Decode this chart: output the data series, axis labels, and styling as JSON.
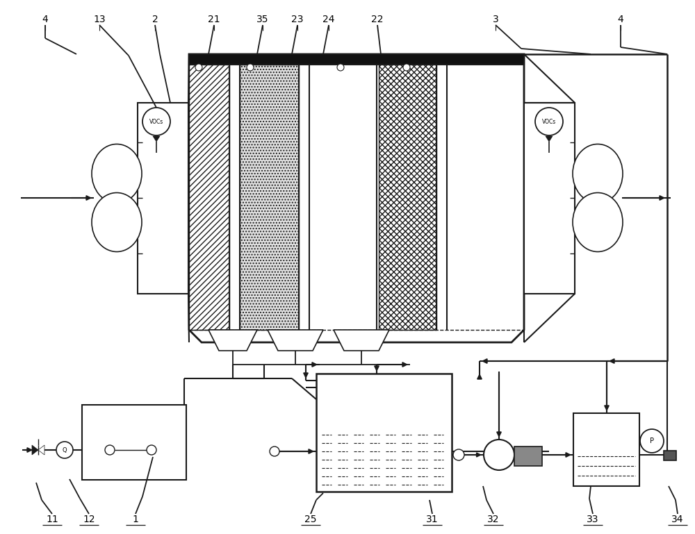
{
  "bg_color": "#ffffff",
  "line_color": "#1a1a1a",
  "fig_width": 10.0,
  "fig_height": 7.69,
  "dpi": 100,
  "top_labels": [
    [
      65,
      28,
      "4"
    ],
    [
      143,
      28,
      "13"
    ],
    [
      223,
      28,
      "2"
    ],
    [
      308,
      28,
      "21"
    ],
    [
      378,
      28,
      "35"
    ],
    [
      428,
      28,
      "23"
    ],
    [
      473,
      28,
      "24"
    ],
    [
      543,
      28,
      "22"
    ],
    [
      713,
      28,
      "3"
    ],
    [
      893,
      28,
      "4"
    ]
  ],
  "bot_labels": [
    [
      75,
      748,
      "11"
    ],
    [
      128,
      748,
      "12"
    ],
    [
      195,
      748,
      "1"
    ],
    [
      447,
      748,
      "25"
    ],
    [
      622,
      748,
      "31"
    ],
    [
      710,
      748,
      "32"
    ],
    [
      853,
      748,
      "33"
    ],
    [
      975,
      748,
      "34"
    ]
  ]
}
